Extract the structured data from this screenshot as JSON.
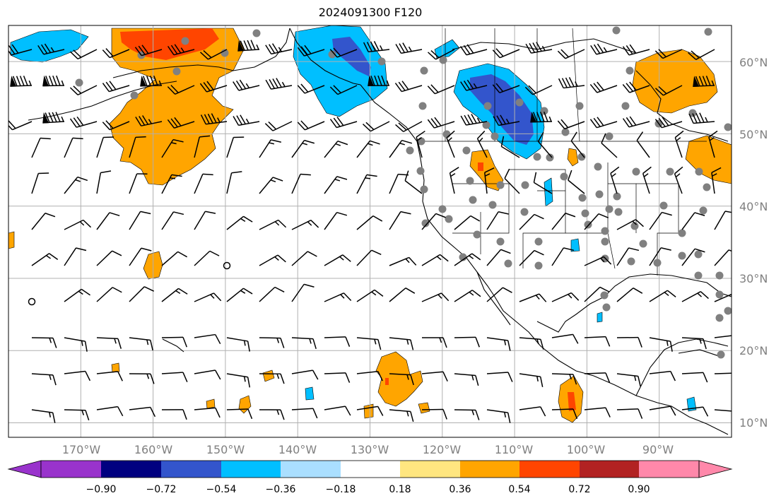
{
  "title": "2024091300 F120",
  "lat_labels": [
    "60°N",
    "50°N",
    "40°N",
    "30°N",
    "20°N",
    "10°N"
  ],
  "lon_labels": [
    "170°W",
    "160°W",
    "150°W",
    "140°W",
    "130°W",
    "120°W",
    "110°W",
    "100°W",
    "90°W"
  ],
  "colorbar": {
    "ticks": [
      "−0.90",
      "−0.72",
      "−0.54",
      "−0.36",
      "−0.18",
      "0.18",
      "0.36",
      "0.54",
      "0.72",
      "0.90"
    ],
    "colors": [
      "#9933cc",
      "#000080",
      "#3355cc",
      "#00bfff",
      "#aadfff",
      "#ffffff",
      "#ffe680",
      "#ffa500",
      "#ff4500",
      "#b22222",
      "#ff88aa"
    ]
  },
  "map": {
    "domain": {
      "lon_min": -180,
      "lon_max": -80,
      "lat_min": 8,
      "lat_max": 65
    },
    "gridlines": true,
    "fill_colors": {
      "orange": "#ffa500",
      "red": "#ff4500",
      "yellow": "#ffe680",
      "blue": "#00bfff",
      "navy": "#3355cc",
      "light_blue": "#aadfff"
    },
    "station_color": "#808080"
  }
}
